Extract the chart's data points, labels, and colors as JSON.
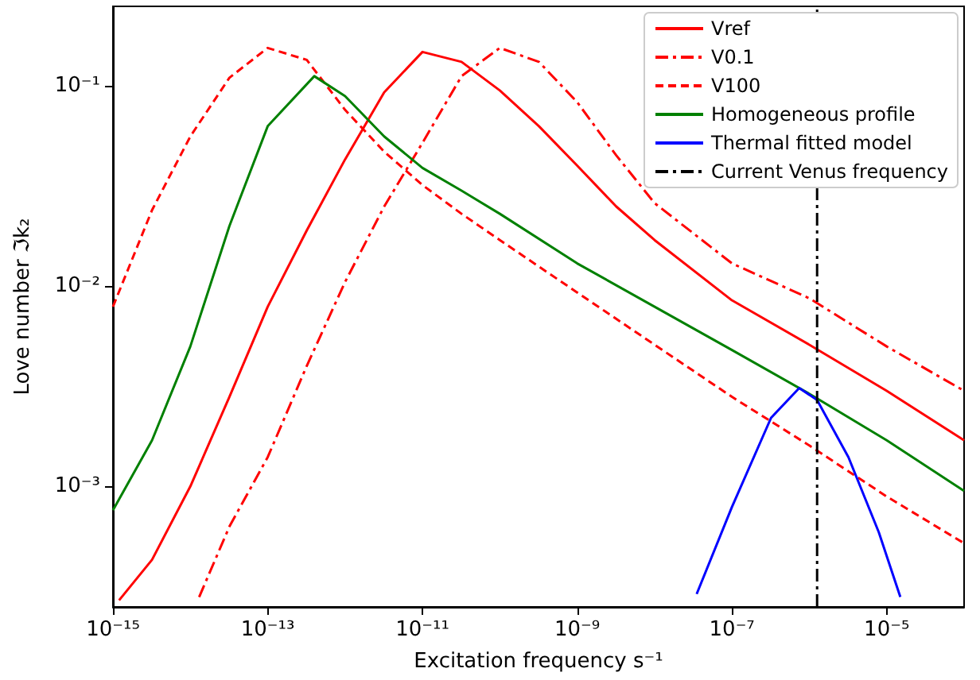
{
  "chart_data": {
    "type": "line",
    "xlabel": "Excitation frequency s⁻¹",
    "ylabel": "Love number ℑk₂",
    "log": "xy",
    "grid": false,
    "legend": "top right",
    "marker": "none",
    "xlim": [
      1e-15,
      0.0001
    ],
    "ylim": [
      0.00025,
      0.25
    ],
    "xticks": [
      {
        "value": 1e-15,
        "label": "10⁻¹⁵"
      },
      {
        "value": 1e-13,
        "label": "10⁻¹³"
      },
      {
        "value": 1e-11,
        "label": "10⁻¹¹"
      },
      {
        "value": 1e-09,
        "label": "10⁻⁹"
      },
      {
        "value": 1e-07,
        "label": "10⁻⁷"
      },
      {
        "value": 1e-05,
        "label": "10⁻⁵"
      }
    ],
    "yticks": [
      {
        "value": 0.001,
        "label": "10⁻³"
      },
      {
        "value": 0.01,
        "label": "10⁻²"
      },
      {
        "value": 0.1,
        "label": "10⁻¹"
      }
    ],
    "series": [
      {
        "name": "Vref",
        "color": "#ff0000",
        "line_style": "solid",
        "x": [
          1.2e-15,
          3.2e-15,
          1e-14,
          3.2e-14,
          1e-13,
          3.2e-13,
          1e-12,
          3.2e-12,
          1e-11,
          3.2e-11,
          1e-10,
          3.2e-10,
          1e-09,
          3.2e-09,
          1e-08,
          1e-07,
          1e-06,
          1e-05,
          0.0001
        ],
        "values": [
          0.00027,
          0.00043,
          0.001,
          0.0028,
          0.0079,
          0.019,
          0.043,
          0.093,
          0.148,
          0.132,
          0.095,
          0.063,
          0.04,
          0.025,
          0.017,
          0.0085,
          0.0051,
          0.003,
          0.0017
        ]
      },
      {
        "name": "V0.1",
        "color": "#ff0000",
        "line_style": "dashdot",
        "x": [
          1.3e-14,
          3.2e-14,
          1e-13,
          3.2e-13,
          1e-12,
          3.2e-12,
          1e-11,
          3.2e-11,
          1e-10,
          3.2e-10,
          1e-09,
          3.2e-09,
          1e-08,
          1e-07,
          1e-06,
          1e-05,
          0.0001
        ],
        "values": [
          0.00028,
          0.00063,
          0.0014,
          0.004,
          0.0105,
          0.025,
          0.052,
          0.112,
          0.155,
          0.132,
          0.083,
          0.045,
          0.026,
          0.013,
          0.0087,
          0.005,
          0.003
        ]
      },
      {
        "name": "V100",
        "color": "#ff0000",
        "line_style": "dashed",
        "x": [
          1e-15,
          3.2e-15,
          1e-14,
          3.2e-14,
          1e-13,
          3.2e-13,
          1e-12,
          3.2e-12,
          1e-11,
          3.2e-11,
          1e-10,
          1e-09,
          1e-08,
          1e-07,
          1e-06,
          1e-05,
          0.0001
        ],
        "values": [
          0.0079,
          0.024,
          0.056,
          0.11,
          0.155,
          0.135,
          0.076,
          0.047,
          0.032,
          0.023,
          0.017,
          0.0093,
          0.0051,
          0.0028,
          0.0016,
          0.00089,
          0.00052
        ]
      },
      {
        "name": "Homogeneous profile",
        "color": "#008000",
        "line_style": "solid",
        "x": [
          1e-15,
          3.2e-15,
          1e-14,
          3.2e-14,
          1e-13,
          4e-13,
          1e-12,
          3.2e-12,
          1e-11,
          3.2e-11,
          1e-10,
          1e-09,
          1e-08,
          1e-07,
          1e-06,
          1e-05,
          0.0001
        ],
        "values": [
          0.00076,
          0.0017,
          0.005,
          0.02,
          0.063,
          0.112,
          0.089,
          0.056,
          0.039,
          0.03,
          0.023,
          0.013,
          0.0079,
          0.0048,
          0.0029,
          0.0017,
          0.00095
        ]
      },
      {
        "name": "Thermal fitted model",
        "color": "#0000ff",
        "line_style": "solid",
        "x": [
          3.5e-08,
          1e-07,
          3.2e-07,
          7.4e-07,
          1.26e-06,
          3.2e-06,
          7.9e-06,
          1.5e-05
        ],
        "values": [
          0.00029,
          0.00079,
          0.0022,
          0.0031,
          0.0027,
          0.0014,
          0.00059,
          0.00028
        ]
      }
    ],
    "ref_lines": [
      {
        "axis": "x",
        "value": 1.26e-06,
        "label": "Current Venus frequency",
        "color": "#000000",
        "line_style": "dashdot"
      }
    ]
  }
}
